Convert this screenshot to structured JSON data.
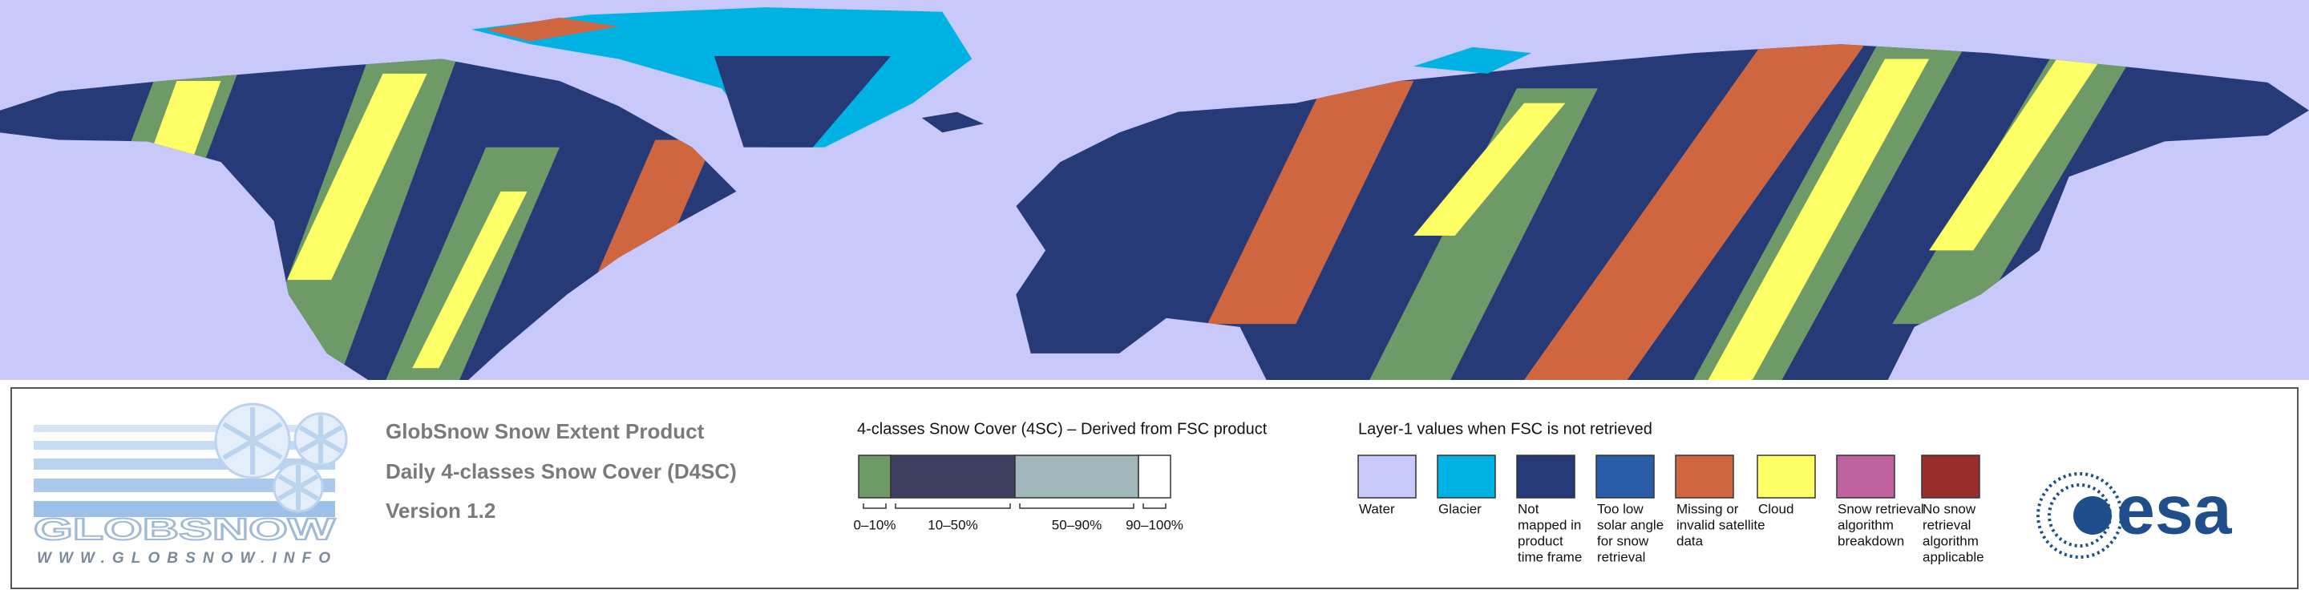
{
  "map": {
    "water_color": "#c9c8fb",
    "land_color": "#263a78"
  },
  "logo": {
    "name": "GLOBSNOW",
    "url": "WWW.GLOBSNOW.INFO"
  },
  "header": {
    "title": "GlobSnow Snow Extent Product",
    "subtitle": "Daily 4-classes Snow Cover (D4SC)",
    "version": "Version 1.2"
  },
  "snow_cover_legend": {
    "title": "4-classes Snow Cover (4SC) – Derived from FSC product",
    "classes": [
      {
        "label": "0–10%",
        "color": "#6e9a68"
      },
      {
        "label": "10–50%",
        "color": "#3e3f60"
      },
      {
        "label": "50–90%",
        "color": "#a1b7bc"
      },
      {
        "label": "90–100%",
        "color": "#ffffff"
      }
    ]
  },
  "layer1_legend": {
    "title": "Layer-1 values when FSC is not retrieved",
    "items": [
      {
        "label": [
          "Water"
        ],
        "color": "#c9c8fb"
      },
      {
        "label": [
          "Glacier"
        ],
        "color": "#00b2e3"
      },
      {
        "label": [
          "Not",
          "mapped in",
          "product",
          "time frame"
        ],
        "color": "#263a78"
      },
      {
        "label": [
          "Too low",
          "solar angle",
          "for snow",
          "retrieval"
        ],
        "color": "#2a5ca8"
      },
      {
        "label": [
          "Missing or",
          "invalid satellite",
          "data"
        ],
        "color": "#d06640"
      },
      {
        "label": [
          "Cloud"
        ],
        "color": "#ffff66"
      },
      {
        "label": [
          "Snow retrieval",
          "algorithm",
          "breakdown"
        ],
        "color": "#c062a0"
      },
      {
        "label": [
          "No snow",
          "retrieval",
          "algorithm",
          "applicable"
        ],
        "color": "#9a2c2c"
      }
    ]
  },
  "agency_logo": {
    "text": "esa"
  }
}
